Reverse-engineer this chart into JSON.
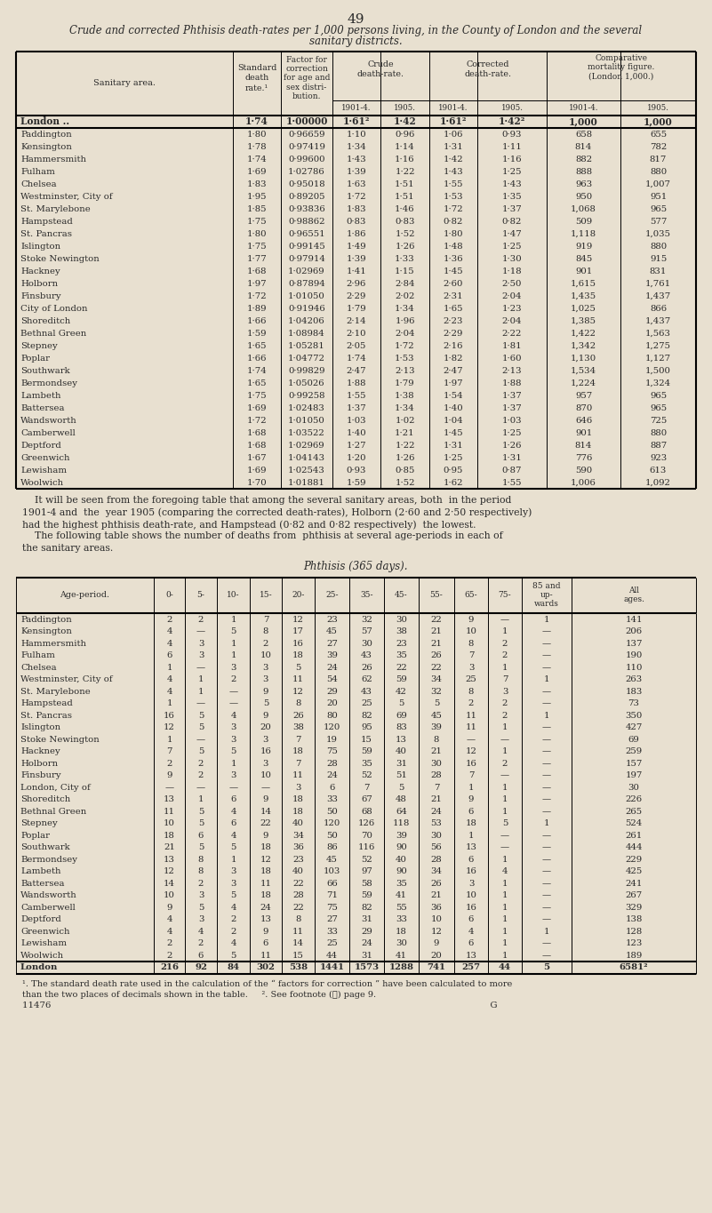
{
  "page_num": "49",
  "title_line1": "Crude and corrected Phthisis death-rates per 1,000 persons living, in the County of London and the several",
  "title_line2": "sanitary districts.",
  "bg_color": "#e8e0d0",
  "table1_rows": [
    [
      "London ..",
      "1·74",
      "1·00000",
      "1·61²",
      "1·42",
      "1·61²",
      "1·42²",
      "1,000",
      "1,000"
    ],
    [
      "Paddington",
      "1·80",
      "0·96659",
      "1·10",
      "0·96",
      "1·06",
      "0·93",
      "658",
      "655"
    ],
    [
      "Kensington",
      "1·78",
      "0·97419",
      "1·34",
      "1·14",
      "1·31",
      "1·11",
      "814",
      "782"
    ],
    [
      "Hammersmith",
      "1·74",
      "0·99600",
      "1·43",
      "1·16",
      "1·42",
      "1·16",
      "882",
      "817"
    ],
    [
      "Fulham",
      "1·69",
      "1·02786",
      "1·39",
      "1·22",
      "1·43",
      "1·25",
      "888",
      "880"
    ],
    [
      "Chelsea",
      "1·83",
      "0·95018",
      "1·63",
      "1·51",
      "1·55",
      "1·43",
      "963",
      "1,007"
    ],
    [
      "Westminster, City of",
      "1·95",
      "0·89205",
      "1·72",
      "1·51",
      "1·53",
      "1·35",
      "950",
      "951"
    ],
    [
      "St. Marylebone",
      "1·85",
      "0·93836",
      "1·83",
      "1·46",
      "1·72",
      "1·37",
      "1,068",
      "965"
    ],
    [
      "Hampstead",
      "1·75",
      "0·98862",
      "0·83",
      "0·83",
      "0·82",
      "0·82",
      "509",
      "577"
    ],
    [
      "St. Pancras",
      "1·80",
      "0·96551",
      "1·86",
      "1·52",
      "1·80",
      "1·47",
      "1,118",
      "1,035"
    ],
    [
      "Islington",
      "1·75",
      "0·99145",
      "1·49",
      "1·26",
      "1·48",
      "1·25",
      "919",
      "880"
    ],
    [
      "Stoke Newington",
      "1·77",
      "0·97914",
      "1·39",
      "1·33",
      "1·36",
      "1·30",
      "845",
      "915"
    ],
    [
      "Hackney",
      "1·68",
      "1·02969",
      "1·41",
      "1·15",
      "1·45",
      "1·18",
      "901",
      "831"
    ],
    [
      "Holborn",
      "1·97",
      "0·87894",
      "2·96",
      "2·84",
      "2·60",
      "2·50",
      "1,615",
      "1,761"
    ],
    [
      "Finsbury",
      "1·72",
      "1·01050",
      "2·29",
      "2·02",
      "2·31",
      "2·04",
      "1,435",
      "1,437"
    ],
    [
      "City of London",
      "1·89",
      "0·91946",
      "1·79",
      "1·34",
      "1·65",
      "1·23",
      "1,025",
      "866"
    ],
    [
      "Shoreditch",
      "1·66",
      "1·04206",
      "2·14",
      "1·96",
      "2·23",
      "2·04",
      "1,385",
      "1,437"
    ],
    [
      "Bethnal Green",
      "1·59",
      "1·08984",
      "2·10",
      "2·04",
      "2·29",
      "2·22",
      "1,422",
      "1,563"
    ],
    [
      "Stepney",
      "1·65",
      "1·05281",
      "2·05",
      "1·72",
      "2·16",
      "1·81",
      "1,342",
      "1,275"
    ],
    [
      "Poplar",
      "1·66",
      "1·04772",
      "1·74",
      "1·53",
      "1·82",
      "1·60",
      "1,130",
      "1,127"
    ],
    [
      "Southwark",
      "1·74",
      "0·99829",
      "2·47",
      "2·13",
      "2·47",
      "2·13",
      "1,534",
      "1,500"
    ],
    [
      "Bermondsey",
      "1·65",
      "1·05026",
      "1·88",
      "1·79",
      "1·97",
      "1·88",
      "1,224",
      "1,324"
    ],
    [
      "Lambeth",
      "1·75",
      "0·99258",
      "1·55",
      "1·38",
      "1·54",
      "1·37",
      "957",
      "965"
    ],
    [
      "Battersea",
      "1·69",
      "1·02483",
      "1·37",
      "1·34",
      "1·40",
      "1·37",
      "870",
      "965"
    ],
    [
      "Wandsworth",
      "1·72",
      "1·01050",
      "1·03",
      "1·02",
      "1·04",
      "1·03",
      "646",
      "725"
    ],
    [
      "Camberwell",
      "1·68",
      "1·03522",
      "1·40",
      "1·21",
      "1·45",
      "1·25",
      "901",
      "880"
    ],
    [
      "Deptford",
      "1·68",
      "1·02969",
      "1·27",
      "1·22",
      "1·31",
      "1·26",
      "814",
      "887"
    ],
    [
      "Greenwich",
      "1·67",
      "1·04143",
      "1·20",
      "1·26",
      "1·25",
      "1·31",
      "776",
      "923"
    ],
    [
      "Lewisham",
      "1·69",
      "1·02543",
      "0·93",
      "0·85",
      "0·95",
      "0·87",
      "590",
      "613"
    ],
    [
      "Woolwich",
      "1·70",
      "1·01881",
      "1·59",
      "1·52",
      "1·62",
      "1·55",
      "1,006",
      "1,092"
    ]
  ],
  "para1_lines": [
    "    It will be seen from the foregoing table that among the several sanitary areas, both  in the period",
    "1901-4 and  the  year 1905 (comparing the corrected death-rates), Holborn (2·60 and 2·50 respectively)",
    "had the highest phthisis death-rate, and Hampstead (0·82 and 0·82 respectively)  the lowest.",
    "    The following table shows the number of deaths from  phthisis at several age-periods in each of",
    "the sanitary areas."
  ],
  "table2_title": "Phthisis (365 days).",
  "table2_header": [
    "Age-period.",
    "0-",
    "5-",
    "10-",
    "15-",
    "20-",
    "25-",
    "35-",
    "45-",
    "55-",
    "65-",
    "75-",
    "85 and\nup-\nwards",
    "All\nages."
  ],
  "table2_rows": [
    [
      "Paddington",
      "2",
      "2",
      "1",
      "7",
      "12",
      "23",
      "32",
      "30",
      "22",
      "9",
      "—",
      "1",
      "141"
    ],
    [
      "Kensington",
      "4",
      "—",
      "5",
      "8",
      "17",
      "45",
      "57",
      "38",
      "21",
      "10",
      "1",
      "—",
      "206"
    ],
    [
      "Hammersmith",
      "4",
      "3",
      "1",
      "2",
      "16",
      "27",
      "30",
      "23",
      "21",
      "8",
      "2",
      "—",
      "137"
    ],
    [
      "Fulham",
      "6",
      "3",
      "1",
      "10",
      "18",
      "39",
      "43",
      "35",
      "26",
      "7",
      "2",
      "—",
      "190"
    ],
    [
      "Chelsea",
      "1",
      "—",
      "3",
      "3",
      "5",
      "24",
      "26",
      "22",
      "22",
      "3",
      "1",
      "—",
      "110"
    ],
    [
      "Westminster, City of",
      "4",
      "1",
      "2",
      "3",
      "11",
      "54",
      "62",
      "59",
      "34",
      "25",
      "7",
      "1",
      "263"
    ],
    [
      "St. Marylebone",
      "4",
      "1",
      "—",
      "9",
      "12",
      "29",
      "43",
      "42",
      "32",
      "8",
      "3",
      "—",
      "183"
    ],
    [
      "Hampstead",
      "1",
      "—",
      "—",
      "5",
      "8",
      "20",
      "25",
      "5",
      "5",
      "2",
      "2",
      "—",
      "73"
    ],
    [
      "St. Pancras",
      "16",
      "5",
      "4",
      "9",
      "26",
      "80",
      "82",
      "69",
      "45",
      "11",
      "2",
      "1",
      "350"
    ],
    [
      "Islington",
      "12",
      "5",
      "3",
      "20",
      "38",
      "120",
      "95",
      "83",
      "39",
      "11",
      "1",
      "—",
      "427"
    ],
    [
      "Stoke Newington",
      "1",
      "—",
      "3",
      "3",
      "7",
      "19",
      "15",
      "13",
      "8",
      "—",
      "—",
      "—",
      "69"
    ],
    [
      "Hackney",
      "7",
      "5",
      "5",
      "16",
      "18",
      "75",
      "59",
      "40",
      "21",
      "12",
      "1",
      "—",
      "259"
    ],
    [
      "Holborn",
      "2",
      "2",
      "1",
      "3",
      "7",
      "28",
      "35",
      "31",
      "30",
      "16",
      "2",
      "—",
      "157"
    ],
    [
      "Finsbury",
      "9",
      "2",
      "3",
      "10",
      "11",
      "24",
      "52",
      "51",
      "28",
      "7",
      "—",
      "—",
      "197"
    ],
    [
      "London, City of",
      "—",
      "—",
      "—",
      "—",
      "3",
      "6",
      "7",
      "5",
      "7",
      "1",
      "1",
      "—",
      "30"
    ],
    [
      "Shoreditch",
      "13",
      "1",
      "6",
      "9",
      "18",
      "33",
      "67",
      "48",
      "21",
      "9",
      "1",
      "—",
      "226"
    ],
    [
      "Bethnal Green",
      "11",
      "5",
      "4",
      "14",
      "18",
      "50",
      "68",
      "64",
      "24",
      "6",
      "1",
      "—",
      "265"
    ],
    [
      "Stepney",
      "10",
      "5",
      "6",
      "22",
      "40",
      "120",
      "126",
      "118",
      "53",
      "18",
      "5",
      "1",
      "524"
    ],
    [
      "Poplar",
      "18",
      "6",
      "4",
      "9",
      "34",
      "50",
      "70",
      "39",
      "30",
      "1",
      "—",
      "—",
      "261"
    ],
    [
      "Southwark",
      "21",
      "5",
      "5",
      "18",
      "36",
      "86",
      "116",
      "90",
      "56",
      "13",
      "—",
      "—",
      "444"
    ],
    [
      "Bermondsey",
      "13",
      "8",
      "1",
      "12",
      "23",
      "45",
      "52",
      "40",
      "28",
      "6",
      "1",
      "—",
      "229"
    ],
    [
      "Lambeth",
      "12",
      "8",
      "3",
      "18",
      "40",
      "103",
      "97",
      "90",
      "34",
      "16",
      "4",
      "—",
      "425"
    ],
    [
      "Battersea",
      "14",
      "2",
      "3",
      "11",
      "22",
      "66",
      "58",
      "35",
      "26",
      "3",
      "1",
      "—",
      "241"
    ],
    [
      "Wandsworth",
      "10",
      "3",
      "5",
      "18",
      "28",
      "71",
      "59",
      "41",
      "21",
      "10",
      "1",
      "—",
      "267"
    ],
    [
      "Camberwell",
      "9",
      "5",
      "4",
      "24",
      "22",
      "75",
      "82",
      "55",
      "36",
      "16",
      "1",
      "—",
      "329"
    ],
    [
      "Deptford",
      "4",
      "3",
      "2",
      "13",
      "8",
      "27",
      "31",
      "33",
      "10",
      "6",
      "1",
      "—",
      "138"
    ],
    [
      "Greenwich",
      "4",
      "4",
      "2",
      "9",
      "11",
      "33",
      "29",
      "18",
      "12",
      "4",
      "1",
      "1",
      "128"
    ],
    [
      "Lewisham",
      "2",
      "2",
      "4",
      "6",
      "14",
      "25",
      "24",
      "30",
      "9",
      "6",
      "1",
      "—",
      "123"
    ],
    [
      "Woolwich",
      "2",
      "6",
      "5",
      "11",
      "15",
      "44",
      "31",
      "41",
      "20",
      "13",
      "1",
      "—",
      "189"
    ],
    [
      "London",
      "216",
      "92",
      "84",
      "302",
      "538",
      "1441",
      "1573",
      "1288",
      "741",
      "257",
      "44",
      "5",
      "6581²"
    ]
  ],
  "footnote1a": "¹. The standard death rate used in the calculation of the “ factors for correction ” have been calculated to more",
  "footnote1b": "than the two places of decimals shown in the table.     ². See footnote (ℓ) page 9.",
  "footnote2": "11476                                                                                                                                                        G"
}
